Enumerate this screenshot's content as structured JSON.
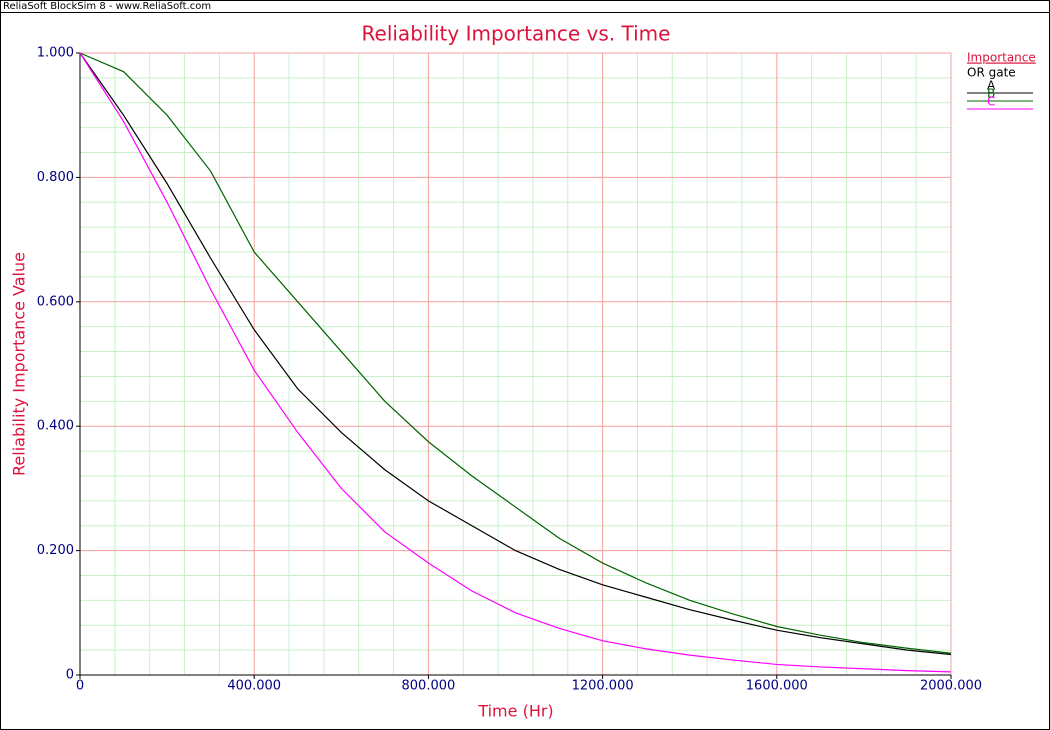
{
  "header": "ReliaSoft BlockSim 8 - www.ReliaSoft.com",
  "chart_data": {
    "type": "line",
    "title": "Reliability Importance vs. Time",
    "x_label": "Time (Hr)",
    "y_label": "Reliability Importance Value",
    "legend_title": "Importance",
    "legend_subtitle": "OR gate",
    "legend_position": "top-right",
    "grid": true,
    "x": [
      0,
      100,
      200,
      300,
      400,
      500,
      600,
      700,
      800,
      900,
      1000,
      1100,
      1200,
      1300,
      1400,
      1500,
      1600,
      1700,
      1800,
      1900,
      2000
    ],
    "series": [
      {
        "name": "A",
        "color": "#000000",
        "values": [
          1.0,
          0.9,
          0.79,
          0.67,
          0.555,
          0.46,
          0.39,
          0.33,
          0.28,
          0.24,
          0.2,
          0.17,
          0.145,
          0.125,
          0.105,
          0.088,
          0.072,
          0.06,
          0.05,
          0.04,
          0.033
        ]
      },
      {
        "name": "B",
        "color": "#006400",
        "values": [
          1.0,
          0.97,
          0.9,
          0.81,
          0.68,
          0.6,
          0.52,
          0.44,
          0.375,
          0.32,
          0.27,
          0.22,
          0.18,
          0.148,
          0.12,
          0.098,
          0.078,
          0.064,
          0.052,
          0.043,
          0.035
        ]
      },
      {
        "name": "C",
        "color": "#ff00ff",
        "values": [
          1.0,
          0.89,
          0.76,
          0.62,
          0.49,
          0.39,
          0.3,
          0.23,
          0.18,
          0.135,
          0.1,
          0.075,
          0.055,
          0.042,
          0.032,
          0.024,
          0.017,
          0.013,
          0.01,
          0.007,
          0.005
        ]
      }
    ],
    "xlim": [
      0,
      2000
    ],
    "ylim": [
      0,
      1
    ],
    "xticks": [
      0,
      {
        "value": 400,
        "label": "400.000"
      },
      {
        "value": 800,
        "label": "800.000"
      },
      {
        "value": 1200,
        "label": "1200.000"
      },
      {
        "value": 1600,
        "label": "1600.000"
      },
      {
        "value": 2000,
        "label": "2000.000"
      }
    ],
    "yticks": [
      0,
      {
        "value": 0.2,
        "label": "0.200"
      },
      {
        "value": 0.4,
        "label": "0.400"
      },
      {
        "value": 0.6,
        "label": "0.600"
      },
      {
        "value": 0.8,
        "label": "0.800"
      },
      {
        "value": 1,
        "label": "1.000"
      }
    ],
    "xminorticks": [
      80,
      160,
      240,
      320,
      480,
      560,
      640,
      720,
      880,
      960,
      1040,
      1120,
      1280,
      1360,
      1440,
      1520,
      1680,
      1760,
      1840,
      1920
    ],
    "yminorticks": [
      0.04,
      0.08,
      0.12,
      0.16,
      0.24,
      0.28,
      0.32,
      0.36,
      0.44,
      0.48,
      0.52,
      0.56,
      0.64,
      0.68,
      0.72,
      0.76,
      0.84,
      0.88,
      0.92,
      0.96
    ],
    "major_grid_color": "#f4a0a0",
    "minor_grid_color": "#c8f0c8"
  }
}
